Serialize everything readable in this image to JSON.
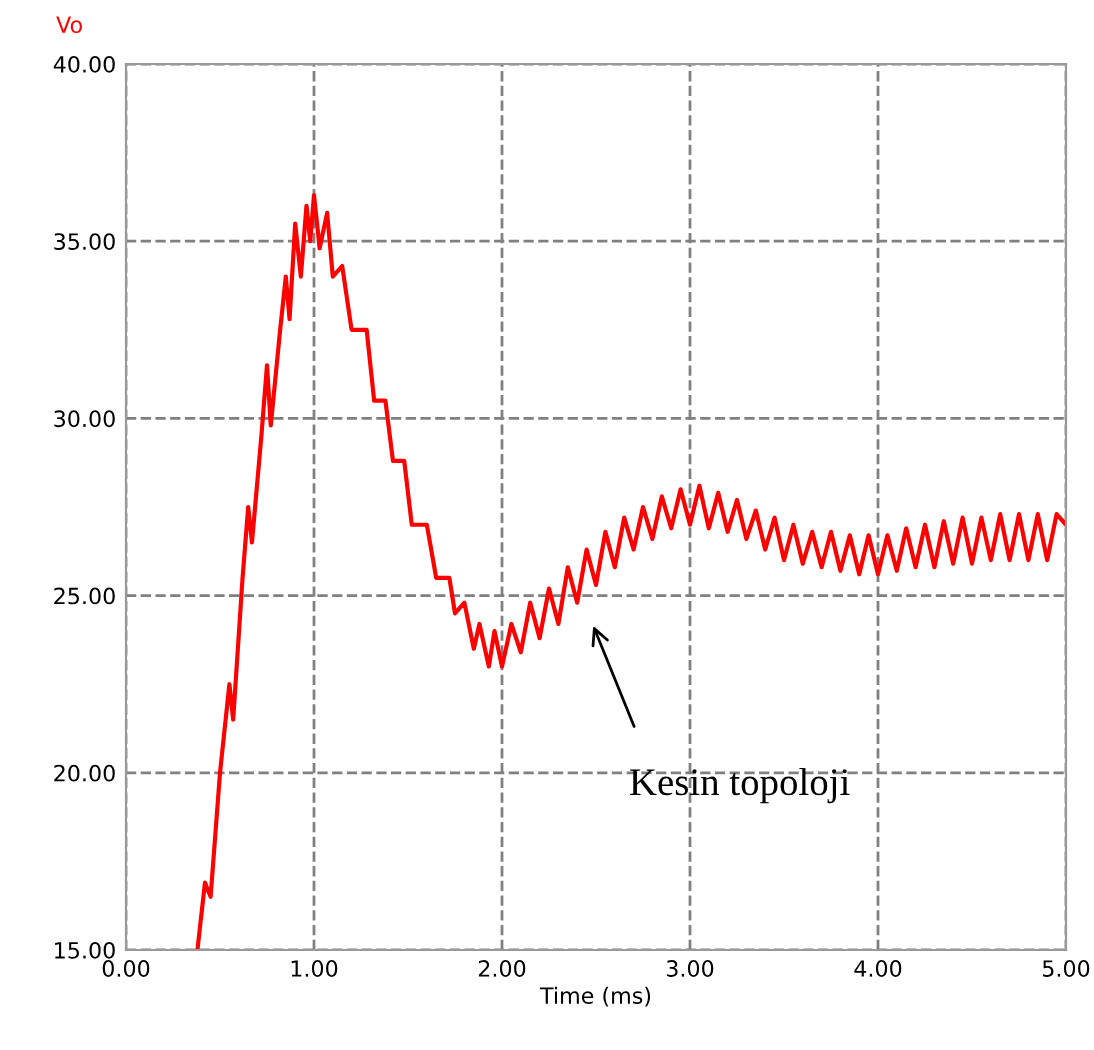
{
  "chart_data": {
    "type": "line",
    "ylabel": "Vo",
    "xlabel": "Time (ms)",
    "annotations": [
      "Kesin topoloji"
    ],
    "series": [
      {
        "color": "#ff0000",
        "x": [
          0.38,
          0.42,
          0.45,
          0.5,
          0.55,
          0.57,
          0.62,
          0.65,
          0.67,
          0.72,
          0.75,
          0.77,
          0.82,
          0.85,
          0.87,
          0.9,
          0.93,
          0.96,
          0.98,
          1.0,
          1.03,
          1.07,
          1.1,
          1.15,
          1.2,
          1.28,
          1.32,
          1.38,
          1.42,
          1.48,
          1.52,
          1.6,
          1.65,
          1.72,
          1.75,
          1.8,
          1.85,
          1.88,
          1.93,
          1.96,
          2.0,
          2.05,
          2.1,
          2.15,
          2.2,
          2.25,
          2.3,
          2.35,
          2.4,
          2.45,
          2.5,
          2.55,
          2.6,
          2.65,
          2.7,
          2.75,
          2.8,
          2.85,
          2.9,
          2.95,
          3.0,
          3.05,
          3.1,
          3.15,
          3.2,
          3.25,
          3.3,
          3.35,
          3.4,
          3.45,
          3.5,
          3.55,
          3.6,
          3.65,
          3.7,
          3.75,
          3.8,
          3.85,
          3.9,
          3.95,
          4.0,
          4.05,
          4.1,
          4.15,
          4.2,
          4.25,
          4.3,
          4.35,
          4.4,
          4.45,
          4.5,
          4.55,
          4.6,
          4.65,
          4.7,
          4.75,
          4.8,
          4.85,
          4.9,
          4.95,
          5.0
        ],
        "values": [
          15,
          16.9,
          16.5,
          20,
          22.5,
          21.5,
          25.5,
          27.5,
          26.5,
          29.5,
          31.5,
          29.8,
          32.5,
          34,
          32.8,
          35.5,
          34,
          36,
          35,
          36.3,
          34.8,
          35.8,
          34,
          34.3,
          32.5,
          32.5,
          30.5,
          30.5,
          28.8,
          28.8,
          27,
          27,
          25.5,
          25.5,
          24.5,
          24.8,
          23.5,
          24.2,
          23,
          24,
          23,
          24.2,
          23.4,
          24.8,
          23.8,
          25.2,
          24.2,
          25.8,
          24.8,
          26.3,
          25.3,
          26.8,
          25.8,
          27.2,
          26.3,
          27.5,
          26.6,
          27.8,
          26.9,
          28,
          27,
          28.1,
          26.9,
          27.9,
          26.8,
          27.7,
          26.6,
          27.4,
          26.3,
          27.2,
          26,
          27,
          25.9,
          26.8,
          25.8,
          26.8,
          25.7,
          26.7,
          25.6,
          26.7,
          25.6,
          26.7,
          25.7,
          26.9,
          25.8,
          27,
          25.8,
          27.1,
          25.9,
          27.2,
          25.9,
          27.2,
          26,
          27.3,
          26,
          27.3,
          26,
          27.3,
          26,
          27.3,
          27
        ]
      }
    ],
    "xlim": [
      0,
      5
    ],
    "ylim": [
      15,
      40
    ],
    "xticks": [
      {
        "value": 0,
        "label": "0.00"
      },
      {
        "value": 1,
        "label": "1.00"
      },
      {
        "value": 2,
        "label": "2.00"
      },
      {
        "value": 3,
        "label": "3.00"
      },
      {
        "value": 4,
        "label": "4.00"
      },
      {
        "value": 5,
        "label": "5.00"
      }
    ],
    "yticks": [
      {
        "value": 15,
        "label": "15.00"
      },
      {
        "value": 20,
        "label": "20.00"
      },
      {
        "value": 25,
        "label": "25.00"
      },
      {
        "value": 30,
        "label": "30.00"
      },
      {
        "value": 35,
        "label": "35.00"
      },
      {
        "value": 40,
        "label": "40.00"
      }
    ],
    "grid": true,
    "line_style": "solid"
  }
}
